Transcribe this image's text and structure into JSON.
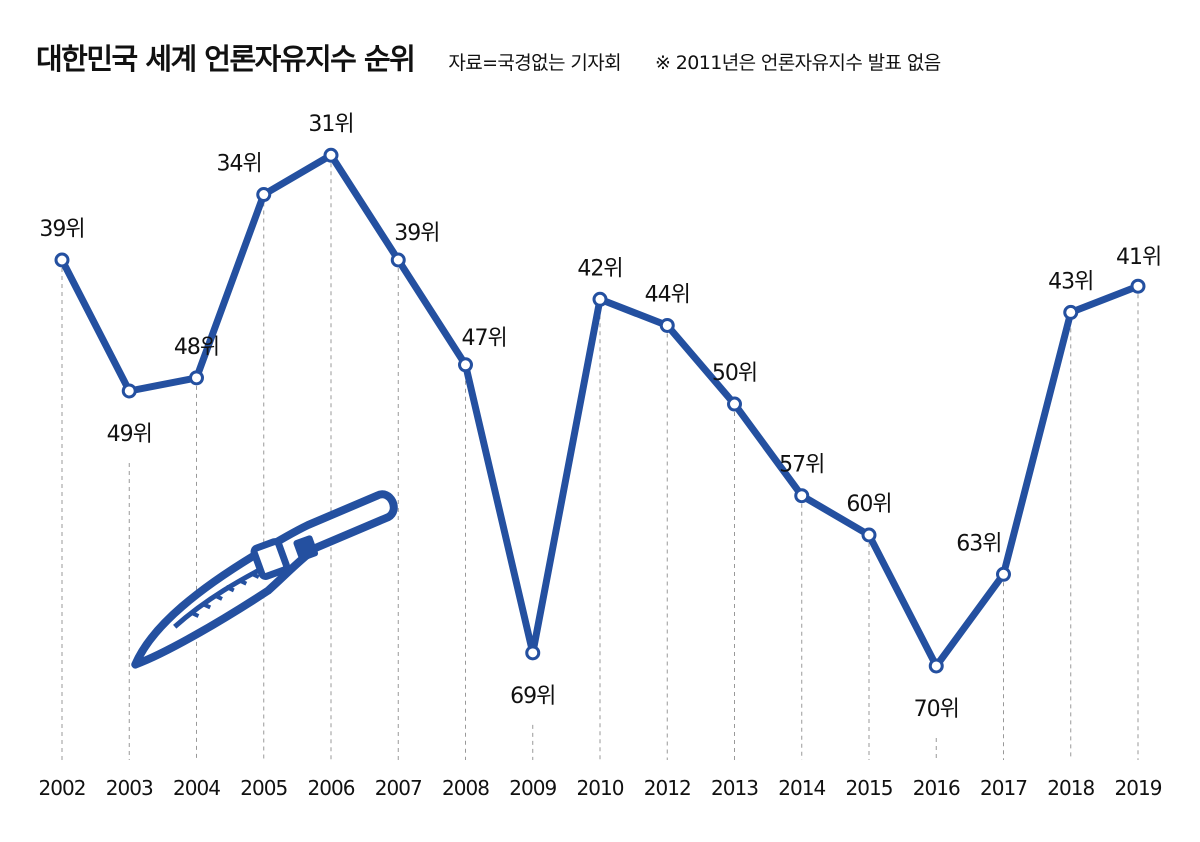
{
  "header": {
    "title": "대한민국 세계 언론자유지수 순위",
    "source": "자료=국경없는 기자회",
    "note": "※ 2011년은 언론자유지수 발표 없음"
  },
  "colors": {
    "line": "#2450a0",
    "marker_fill": "#ffffff",
    "guide": "#999999",
    "text": "#111111"
  },
  "illustration": {
    "icon": "pen-nib-icon"
  },
  "chart_data": {
    "type": "line",
    "title": "대한민국 세계 언론자유지수 순위",
    "xlabel": "",
    "ylabel": "",
    "y_inverted": true,
    "ylim": [
      25,
      75
    ],
    "categories": [
      "2002",
      "2003",
      "2004",
      "2005",
      "2006",
      "2007",
      "2008",
      "2009",
      "2010",
      "2012",
      "2013",
      "2014",
      "2015",
      "2016",
      "2017",
      "2018",
      "2019"
    ],
    "series": [
      {
        "name": "순위",
        "values": [
          39,
          49,
          48,
          34,
          31,
          39,
          47,
          69,
          42,
          44,
          50,
          57,
          60,
          70,
          63,
          43,
          41
        ]
      }
    ],
    "data_labels": [
      "39위",
      "49위",
      "48위",
      "34위",
      "31위",
      "39위",
      "47위",
      "69위",
      "42위",
      "44위",
      "50위",
      "57위",
      "60위",
      "70위",
      "63위",
      "43위",
      "41위"
    ],
    "label_positions": [
      "above",
      "below",
      "above",
      "above-left",
      "above",
      "above-right",
      "above-right",
      "below",
      "above",
      "above",
      "above",
      "above",
      "above",
      "below",
      "above-left",
      "above",
      "above-right"
    ],
    "grid": false,
    "legend": "none"
  }
}
